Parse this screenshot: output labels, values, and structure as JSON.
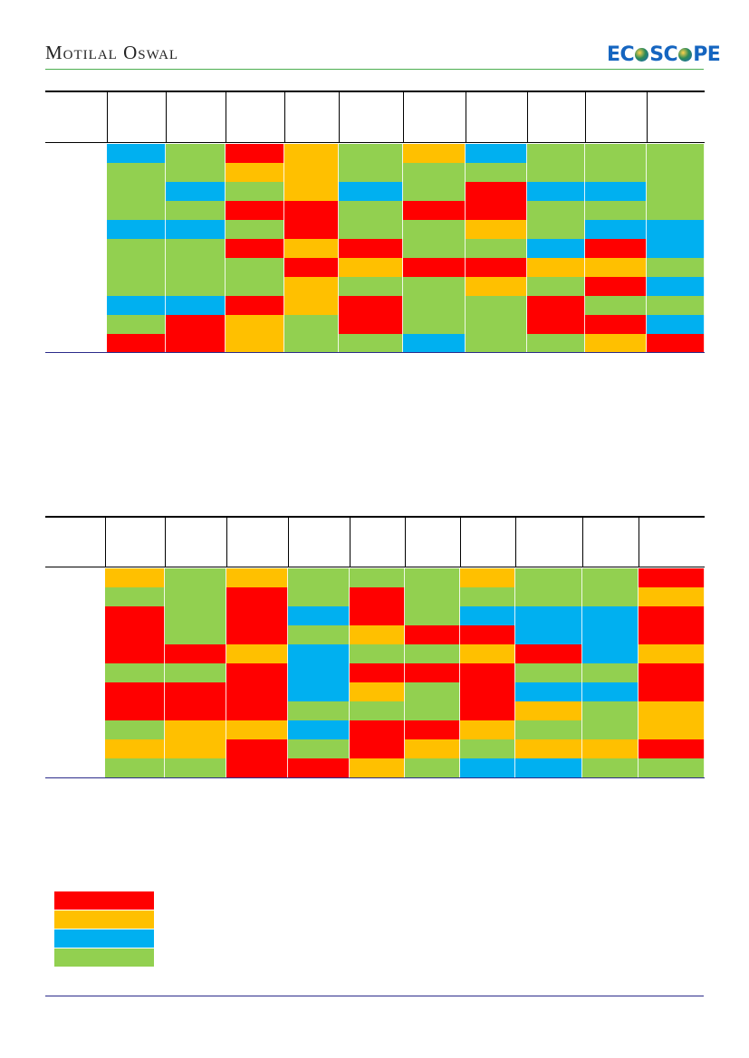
{
  "header": {
    "brand_left": "Motilal Oswal",
    "brand_right_a": "EC",
    "brand_right_b": "SC",
    "brand_right_c": "PE"
  },
  "colors": {
    "R": "#ff0000",
    "O": "#ffc000",
    "B": "#00b0f0",
    "G": "#92d050"
  },
  "table1": {
    "grid": [
      [
        "B",
        "G",
        "R",
        "O",
        "G",
        "O",
        "B",
        "G",
        "G",
        "G"
      ],
      [
        "G",
        "G",
        "O",
        "O",
        "G",
        "G",
        "G",
        "G",
        "G",
        "G"
      ],
      [
        "G",
        "B",
        "G",
        "O",
        "B",
        "G",
        "R",
        "B",
        "B",
        "G"
      ],
      [
        "G",
        "G",
        "R",
        "R",
        "G",
        "R",
        "R",
        "G",
        "G",
        "G"
      ],
      [
        "B",
        "B",
        "G",
        "R",
        "G",
        "G",
        "O",
        "G",
        "B",
        "B"
      ],
      [
        "G",
        "G",
        "R",
        "O",
        "R",
        "G",
        "G",
        "B",
        "R",
        "B"
      ],
      [
        "G",
        "G",
        "G",
        "R",
        "O",
        "R",
        "R",
        "O",
        "O",
        "G"
      ],
      [
        "G",
        "G",
        "G",
        "O",
        "G",
        "G",
        "O",
        "G",
        "R",
        "B"
      ],
      [
        "B",
        "B",
        "R",
        "O",
        "R",
        "G",
        "G",
        "R",
        "G",
        "G"
      ],
      [
        "G",
        "R",
        "O",
        "G",
        "R",
        "G",
        "G",
        "R",
        "R",
        "B"
      ],
      [
        "R",
        "R",
        "O",
        "G",
        "G",
        "B",
        "G",
        "G",
        "O",
        "R"
      ]
    ]
  },
  "table2": {
    "grid": [
      [
        "O",
        "G",
        "O",
        "G",
        "G",
        "G",
        "O",
        "G",
        "G",
        "R"
      ],
      [
        "G",
        "G",
        "R",
        "G",
        "R",
        "G",
        "G",
        "G",
        "G",
        "O"
      ],
      [
        "R",
        "G",
        "R",
        "B",
        "R",
        "G",
        "B",
        "B",
        "B",
        "R"
      ],
      [
        "R",
        "G",
        "R",
        "G",
        "O",
        "R",
        "R",
        "B",
        "B",
        "R"
      ],
      [
        "R",
        "R",
        "O",
        "B",
        "G",
        "G",
        "O",
        "R",
        "B",
        "O"
      ],
      [
        "G",
        "G",
        "R",
        "B",
        "R",
        "R",
        "R",
        "G",
        "G",
        "R"
      ],
      [
        "R",
        "R",
        "R",
        "B",
        "O",
        "G",
        "R",
        "B",
        "B",
        "R"
      ],
      [
        "R",
        "R",
        "R",
        "G",
        "G",
        "G",
        "R",
        "O",
        "G",
        "O"
      ],
      [
        "G",
        "O",
        "O",
        "B",
        "R",
        "R",
        "O",
        "G",
        "G",
        "O"
      ],
      [
        "O",
        "O",
        "R",
        "G",
        "R",
        "O",
        "G",
        "O",
        "O",
        "R"
      ],
      [
        "G",
        "G",
        "R",
        "R",
        "O",
        "G",
        "B",
        "B",
        "G",
        "G"
      ]
    ]
  },
  "legend": [
    "R",
    "O",
    "B",
    "G"
  ]
}
